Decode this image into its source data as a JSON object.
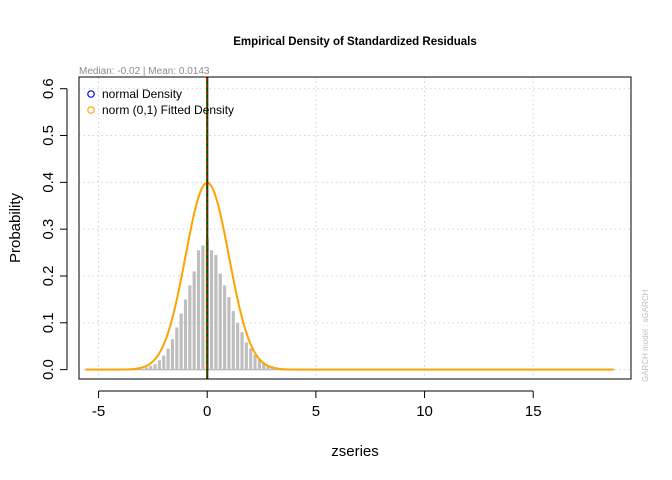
{
  "chart_data": {
    "type": "histogram-density",
    "title": "Empirical Density of Standardized Residuals",
    "subtitle": "Median:  -0.02 | Mean:  0.0143",
    "xlabel": "zseries",
    "ylabel": "Probability",
    "side_note": "GARCH model : sGARCH",
    "xlim": [
      -5.9,
      19.5
    ],
    "ylim": [
      -0.02,
      0.625
    ],
    "x_ticks": [
      -5,
      0,
      5,
      10,
      15
    ],
    "x_tick_labels": [
      "-5",
      "0",
      "5",
      "10",
      "15"
    ],
    "y_ticks": [
      0.0,
      0.1,
      0.2,
      0.3,
      0.4,
      0.5,
      0.6
    ],
    "y_tick_labels": [
      "0.0",
      "0.1",
      "0.2",
      "0.3",
      "0.4",
      "0.5",
      "0.6"
    ],
    "grid": true,
    "legend_position": "top-left",
    "legend": [
      {
        "label": "normal Density",
        "color": "#0000ff"
      },
      {
        "label": "norm (0,1) Fitted Density",
        "color": "#ffa500"
      }
    ],
    "histogram": {
      "color": "#bebebe",
      "bin_centers": [
        -2.8,
        -2.6,
        -2.4,
        -2.2,
        -2.0,
        -1.8,
        -1.6,
        -1.4,
        -1.2,
        -1.0,
        -0.8,
        -0.6,
        -0.4,
        -0.2,
        0.0,
        0.2,
        0.4,
        0.6,
        0.8,
        1.0,
        1.2,
        1.4,
        1.6,
        1.8,
        2.0,
        2.2,
        2.4,
        2.6,
        2.8,
        3.0,
        3.2,
        3.4,
        3.6
      ],
      "values": [
        0.005,
        0.008,
        0.012,
        0.02,
        0.03,
        0.045,
        0.065,
        0.09,
        0.12,
        0.15,
        0.18,
        0.21,
        0.255,
        0.265,
        0.28,
        0.255,
        0.245,
        0.205,
        0.18,
        0.155,
        0.125,
        0.1,
        0.08,
        0.058,
        0.045,
        0.032,
        0.022,
        0.015,
        0.01,
        0.007,
        0.005,
        0.003,
        0.002
      ]
    },
    "baseline_range": [
      -5.6,
      18.7
    ],
    "density_curves": [
      {
        "name": "normal Density",
        "color": "#0000ff",
        "mean": 0,
        "sd": 1
      },
      {
        "name": "norm (0,1) Fitted Density",
        "color": "#ffa500",
        "mean": 0,
        "sd": 1
      }
    ],
    "vertical_lines": [
      {
        "label": "mean",
        "x": 0.0143,
        "color": "#000000"
      },
      {
        "label": "median",
        "x": -0.02,
        "color": "#008000"
      },
      {
        "label": "zero",
        "x": 0.0,
        "color": "#ff0000",
        "dashed": true
      }
    ],
    "colors": {
      "grid": "#d3d3d3",
      "axis": "#000000",
      "title": "#000000",
      "subtitle": "#8c8c8c",
      "side_note": "#bebebe",
      "baseline": "#bebebe"
    }
  }
}
